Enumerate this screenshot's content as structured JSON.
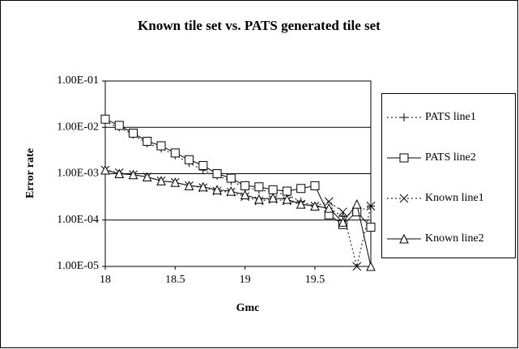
{
  "chart_data": {
    "type": "line",
    "title": "Known tile set vs. PATS generated tile set",
    "x_label": "Gmc",
    "y_label": "Error rate",
    "x": [
      18,
      18.1,
      18.2,
      18.3,
      18.4,
      18.5,
      18.6,
      18.7,
      18.8,
      18.9,
      19,
      19.1,
      19.2,
      19.3,
      19.4,
      19.5,
      19.6,
      19.7,
      19.8,
      19.9
    ],
    "xlim": [
      18,
      19.9
    ],
    "xticks": [
      18,
      18.5,
      19,
      19.5
    ],
    "ylim": [
      1e-05,
      0.1
    ],
    "log_y": true,
    "grid": true,
    "legend": "right",
    "yticks": [
      {
        "value": 1e-05,
        "label": "1.00E-05"
      },
      {
        "value": 0.0001,
        "label": "1.00E-04"
      },
      {
        "value": 0.001,
        "label": "1.00E-03"
      },
      {
        "value": 0.01,
        "label": "1.00E-02"
      },
      {
        "value": 0.1,
        "label": "1.00E-01"
      }
    ],
    "series": [
      {
        "name": "PATS line1",
        "color": "#000000",
        "marker": "plus",
        "line_style": "dotted",
        "values": [
          0.013,
          0.01,
          0.007,
          0.0045,
          0.0035,
          0.0025,
          0.0017,
          0.0012,
          0.0009,
          0.0007,
          0.0005,
          0.00045,
          0.0004,
          0.00035,
          0.00025,
          0.0002,
          0.00018,
          0.00012,
          0.00015,
          0.0002
        ]
      },
      {
        "name": "PATS line2",
        "color": "#000000",
        "marker": "square",
        "line_style": "solid",
        "values": [
          0.015,
          0.011,
          0.0075,
          0.005,
          0.004,
          0.0028,
          0.002,
          0.0015,
          0.001,
          0.0008,
          0.00055,
          0.00052,
          0.00045,
          0.00042,
          0.00048,
          0.00055,
          0.00013,
          8e-05,
          0.00015,
          7e-05
        ]
      },
      {
        "name": "Known line1",
        "color": "#000000",
        "marker": "cross",
        "line_style": "dotted",
        "values": [
          0.0012,
          0.00105,
          0.00095,
          0.00085,
          0.0007,
          0.00065,
          0.00055,
          0.0005,
          0.00042,
          0.0004,
          0.00032,
          0.00026,
          0.00028,
          0.00026,
          0.00022,
          0.0002,
          0.00025,
          0.00015,
          1e-05,
          0.0002
        ]
      },
      {
        "name": "Known line2",
        "color": "#000000",
        "marker": "triangle",
        "line_style": "solid",
        "values": [
          0.0012,
          0.001,
          0.00095,
          0.00085,
          0.0007,
          0.00065,
          0.00055,
          0.00052,
          0.00045,
          0.00042,
          0.00035,
          0.00028,
          0.0003,
          0.00028,
          0.00022,
          0.0002,
          0.00018,
          9e-05,
          0.00022,
          1e-05
        ]
      }
    ]
  }
}
